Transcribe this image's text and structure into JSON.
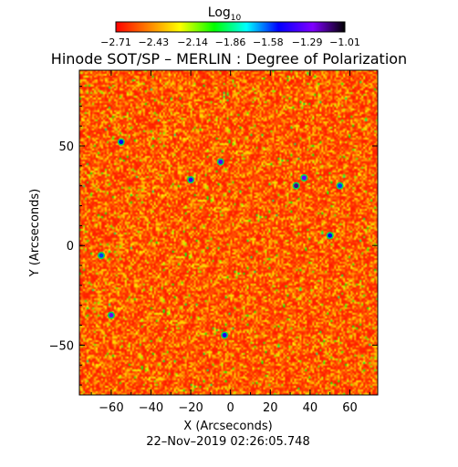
{
  "chart_data": {
    "type": "heatmap",
    "title": "Hinode SOT/SP – MERLIN : Degree of Polarization",
    "xlabel": "X (Arcseconds)",
    "ylabel": "Y (Arcseconds)",
    "xlim": [
      -76,
      74
    ],
    "ylim": [
      -75,
      88
    ],
    "x_ticks": [
      -60,
      -40,
      -20,
      0,
      20,
      40,
      60
    ],
    "y_ticks": [
      -50,
      0,
      50
    ],
    "x_tick_labels": [
      "−60",
      "−40",
      "−20",
      "0",
      "20",
      "40",
      "60"
    ],
    "y_tick_labels": [
      "−50",
      "0",
      "50"
    ],
    "colorbar": {
      "label": "Log",
      "label_subscript": "10",
      "range": [
        -2.71,
        -1.01
      ],
      "ticks": [
        -2.71,
        -2.43,
        -2.14,
        -1.86,
        -1.58,
        -1.29,
        -1.01
      ],
      "tick_labels": [
        "−2.71",
        "−2.43",
        "−2.14",
        "−1.86",
        "−1.58",
        "−1.29",
        "−1.01"
      ],
      "colormap": [
        "#ff0000",
        "#ff7f00",
        "#ffff00",
        "#00ff00",
        "#00ffff",
        "#0000ff",
        "#7f00ff",
        "#000000"
      ]
    },
    "timestamp": "22–Nov–2019 02:26:05.748",
    "strong_patches": [
      {
        "x": 33,
        "y": 30,
        "level": -1.15
      },
      {
        "x": 37,
        "y": 34,
        "level": -1.3
      },
      {
        "x": -5,
        "y": 42,
        "level": -1.35
      },
      {
        "x": -60,
        "y": -35,
        "level": -1.3
      },
      {
        "x": -20,
        "y": 33,
        "level": -1.4
      },
      {
        "x": -3,
        "y": -45,
        "level": -1.45
      },
      {
        "x": 50,
        "y": 5,
        "level": -1.5
      },
      {
        "x": -55,
        "y": 52,
        "level": -1.5
      },
      {
        "x": -65,
        "y": -5,
        "level": -1.55
      },
      {
        "x": 55,
        "y": 30,
        "level": -1.55
      }
    ]
  }
}
